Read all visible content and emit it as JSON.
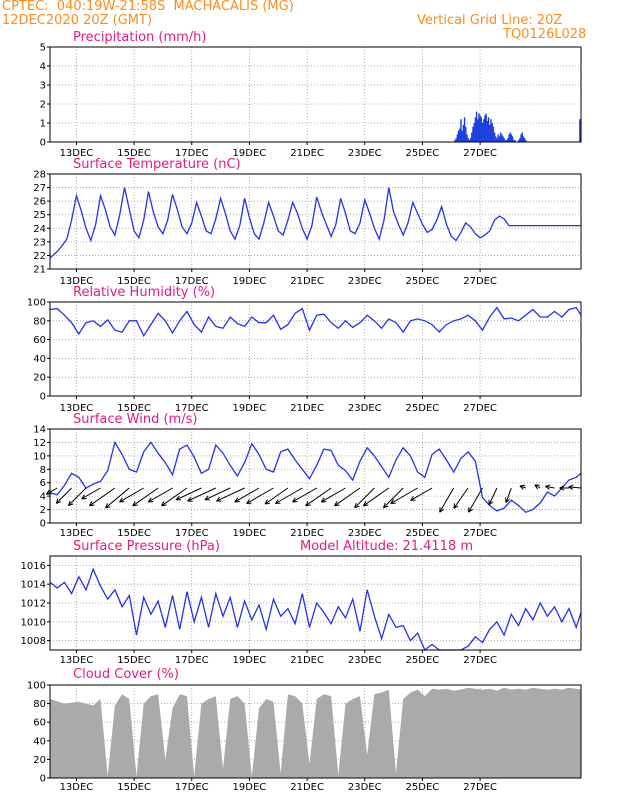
{
  "header": {
    "line1": "CPTEC:  040:19W-21:58S  MACHACALIS (MG)",
    "line2": "12DEC2020 20Z (GMT)",
    "right1": "Vertical Grid Line: 20Z",
    "right2": "TQ0126L028"
  },
  "colors": {
    "line": "#2233ee",
    "bar": "#1a3fe0",
    "cloud": "#aaaaaa",
    "title": "#e6197f",
    "header": "#ff8c1a",
    "arrow": "#000000"
  },
  "x_ticks": [
    "13DEC",
    "15DEC",
    "17DEC",
    "19DEC",
    "21DEC",
    "23DEC",
    "25DEC",
    "27DEC"
  ],
  "chart_data": [
    {
      "type": "bar",
      "title": "Precipitation (mm/h)",
      "ylim": [
        0,
        5
      ],
      "yticks": [
        0,
        1,
        2,
        3,
        4,
        5
      ],
      "x_unit": "hours since 12DEC2020 20Z",
      "x": [
        337,
        338,
        339,
        340,
        341,
        342,
        343,
        344,
        345,
        346,
        347,
        348,
        349,
        350,
        351,
        352,
        353,
        354,
        355,
        356,
        357,
        358,
        359,
        360,
        361,
        362,
        363,
        364,
        365,
        366,
        367,
        368,
        369,
        370,
        371,
        372,
        373,
        374,
        375,
        376,
        377,
        378,
        379,
        380,
        381,
        382,
        383,
        384,
        385,
        386,
        387,
        388,
        389,
        390,
        391,
        392,
        393,
        394,
        395,
        396,
        397,
        398,
        399,
        400,
        401,
        402,
        403,
        404,
        405,
        406,
        407,
        408,
        409,
        410,
        411,
        412,
        413,
        414,
        415,
        416,
        417,
        418,
        419,
        420,
        421,
        422,
        423,
        424,
        425,
        426,
        427,
        428,
        429,
        430,
        431,
        432,
        433,
        434,
        435,
        436,
        437,
        438,
        439,
        440,
        441
      ],
      "values": [
        0.1,
        0.2,
        0.4,
        0.6,
        0.7,
        1.2,
        0.6,
        0.9,
        1.3,
        0.8,
        0.4,
        0.2,
        0.1,
        0.2,
        0.5,
        0.8,
        1.0,
        1.3,
        1.6,
        1.2,
        1.5,
        1.4,
        1.3,
        1.0,
        1.2,
        1.4,
        1.5,
        1.1,
        1.3,
        0.9,
        1.2,
        1.0,
        0.8,
        0.5,
        0.3,
        0.2,
        0.4,
        0.3,
        0.5,
        0.4,
        0.3,
        0.2,
        0.1,
        0.1,
        0.2,
        0.4,
        0.5,
        0.4,
        0.3,
        0.1,
        0.1,
        0.0,
        0.0,
        0.1,
        0.2,
        0.4,
        0.5,
        0.3,
        0.2,
        0.1,
        0.0,
        0.0,
        0.0,
        0.0,
        0.0,
        0.0,
        0.0,
        0.0,
        0.0,
        0.0,
        0.0,
        0.0,
        0.0,
        0.0,
        0.0,
        0.0,
        0.0,
        0.0,
        0.0,
        0.0,
        0.0,
        0.0,
        0.0,
        0.0,
        0.0,
        0.0,
        0.0,
        0.0,
        0.0,
        0.0,
        0.0,
        0.0,
        0.0,
        0.0,
        0.0,
        0.0,
        0.0,
        0.0,
        0.0,
        0.0,
        0.0,
        0.0,
        0.0,
        0.0,
        1.2
      ]
    },
    {
      "type": "line",
      "title": "Surface Temperature (nC)",
      "ylim": [
        21,
        28
      ],
      "yticks": [
        21,
        22,
        23,
        24,
        25,
        26,
        27,
        28
      ],
      "x_unit": "hours since 12DEC2020 20Z",
      "x": [
        0,
        6,
        10,
        14,
        18,
        22,
        26,
        30,
        34,
        38,
        42,
        46,
        50,
        54,
        58,
        62,
        66,
        70,
        74,
        78,
        82,
        86,
        90,
        94,
        98,
        102,
        106,
        110,
        114,
        118,
        122,
        126,
        130,
        134,
        138,
        142,
        146,
        150,
        154,
        158,
        162,
        166,
        170,
        174,
        178,
        182,
        186,
        190,
        194,
        198,
        202,
        206,
        210,
        214,
        218,
        222,
        226,
        230,
        234,
        238,
        242,
        246,
        250,
        254,
        258,
        262,
        266,
        270,
        274,
        278,
        282,
        286,
        290,
        294,
        298,
        302,
        306,
        310,
        314,
        318,
        322,
        326,
        330,
        334,
        338,
        342,
        346,
        350,
        354,
        358,
        362,
        366,
        370,
        374,
        378,
        382,
        386,
        390,
        394,
        398,
        402,
        406,
        410,
        414,
        418,
        422,
        426,
        430,
        434,
        438,
        442
      ],
      "values": [
        21.8,
        22.3,
        22.7,
        23.2,
        24.6,
        26.4,
        25.3,
        24.0,
        23.1,
        24.3,
        26.4,
        25.4,
        24.1,
        23.5,
        25.0,
        27.0,
        25.4,
        23.8,
        23.3,
        24.6,
        26.7,
        25.2,
        24.1,
        23.6,
        24.6,
        26.5,
        25.4,
        24.1,
        23.6,
        24.4,
        25.9,
        24.9,
        23.8,
        23.6,
        24.7,
        26.2,
        25.1,
        23.8,
        23.2,
        24.2,
        26.2,
        24.8,
        23.6,
        23.2,
        24.4,
        25.9,
        24.9,
        23.8,
        23.5,
        24.6,
        25.9,
        25.1,
        24.0,
        23.2,
        24.2,
        26.3,
        25.2,
        24.3,
        23.4,
        24.3,
        26.2,
        25.1,
        23.8,
        23.6,
        24.4,
        26.1,
        25.1,
        24.0,
        23.2,
        24.6,
        27.0,
        25.2,
        24.3,
        23.5,
        24.4,
        25.9,
        25.1,
        24.3,
        23.7,
        23.9,
        24.6,
        25.6,
        24.3,
        23.4,
        23.1,
        23.7,
        24.4,
        24.1,
        23.6,
        23.3,
        23.5,
        23.8,
        24.6,
        24.9,
        24.7,
        24.2,
        24.2,
        24.2,
        24.2,
        24.2,
        24.2,
        24.2,
        24.2,
        24.2,
        24.2,
        24.2,
        24.2,
        24.2,
        24.2,
        24.2,
        24.2
      ]
    },
    {
      "type": "line",
      "title": "Relative Humidity (%)",
      "ylim": [
        0,
        100
      ],
      "yticks": [
        0,
        20,
        40,
        60,
        80,
        100
      ],
      "x_unit": "hours since 12DEC2020 20Z",
      "x": [
        0,
        6,
        12,
        18,
        24,
        30,
        36,
        42,
        48,
        54,
        60,
        66,
        72,
        78,
        84,
        90,
        96,
        102,
        108,
        114,
        120,
        126,
        132,
        138,
        144,
        150,
        156,
        162,
        168,
        174,
        180,
        186,
        192,
        198,
        204,
        210,
        216,
        222,
        228,
        234,
        240,
        246,
        252,
        258,
        264,
        270,
        276,
        282,
        288,
        294,
        300,
        306,
        312,
        318,
        324,
        330,
        336,
        342,
        348,
        354,
        360,
        366,
        372,
        378,
        384,
        390,
        396,
        402,
        408,
        414,
        420,
        426,
        432,
        438,
        442
      ],
      "values": [
        92,
        93,
        86,
        78,
        66,
        78,
        80,
        74,
        81,
        70,
        68,
        80,
        80,
        64,
        76,
        88,
        80,
        67,
        80,
        90,
        76,
        68,
        84,
        74,
        72,
        84,
        77,
        74,
        84,
        78,
        78,
        86,
        71,
        76,
        88,
        93,
        70,
        86,
        87,
        78,
        72,
        80,
        73,
        78,
        86,
        80,
        72,
        82,
        78,
        68,
        80,
        82,
        80,
        76,
        68,
        76,
        80,
        82,
        86,
        80,
        70,
        84,
        94,
        82,
        83,
        80,
        86,
        92,
        84,
        84,
        90,
        84,
        92,
        94,
        86
      ]
    },
    {
      "type": "line",
      "title": "Surface Wind (m/s)",
      "ylim": [
        0,
        14
      ],
      "yticks": [
        0,
        2,
        4,
        6,
        8,
        10,
        12,
        14
      ],
      "x_unit": "hours since 12DEC2020 20Z",
      "x": [
        0,
        6,
        12,
        18,
        24,
        30,
        36,
        42,
        48,
        54,
        60,
        66,
        72,
        78,
        84,
        90,
        96,
        102,
        108,
        114,
        120,
        126,
        132,
        138,
        144,
        150,
        156,
        162,
        168,
        174,
        180,
        186,
        192,
        198,
        204,
        210,
        216,
        222,
        228,
        234,
        240,
        246,
        252,
        258,
        264,
        270,
        276,
        282,
        288,
        294,
        300,
        306,
        312,
        318,
        324,
        330,
        336,
        342,
        348,
        354,
        360,
        366,
        372,
        378,
        384,
        390,
        396,
        402,
        408,
        414,
        420,
        426,
        432,
        438,
        442
      ],
      "values": [
        4.5,
        4.2,
        5.6,
        7.4,
        6.8,
        5.2,
        5.8,
        6.2,
        7.8,
        12.0,
        10.2,
        8.0,
        7.6,
        10.6,
        12.0,
        10.4,
        9.0,
        7.2,
        11.0,
        11.6,
        9.8,
        7.4,
        8.0,
        11.6,
        10.4,
        8.6,
        7.0,
        9.0,
        11.8,
        10.2,
        8.0,
        7.6,
        10.6,
        11.0,
        9.4,
        8.0,
        6.6,
        8.6,
        11.0,
        10.8,
        8.6,
        7.8,
        6.4,
        9.2,
        11.2,
        10.0,
        8.4,
        6.8,
        9.4,
        11.2,
        10.0,
        7.6,
        6.8,
        10.2,
        11.0,
        9.4,
        7.6,
        9.6,
        10.6,
        9.2,
        3.8,
        2.6,
        1.8,
        2.2,
        3.4,
        2.6,
        1.6,
        2.0,
        3.0,
        4.6,
        4.0,
        5.2,
        6.4,
        6.8,
        7.4
      ]
    },
    {
      "type": "line",
      "title": "Surface Pressure (hPa)",
      "subtitle": "Model Altitude: 21.4118 m",
      "ylim": [
        1007,
        1017
      ],
      "yticks": [
        1008,
        1010,
        1012,
        1014,
        1016
      ],
      "x_unit": "hours since 12DEC2020 20Z",
      "x": [
        0,
        6,
        12,
        18,
        24,
        30,
        36,
        42,
        48,
        54,
        60,
        66,
        72,
        78,
        84,
        90,
        96,
        102,
        108,
        114,
        120,
        126,
        132,
        138,
        144,
        150,
        156,
        162,
        168,
        174,
        180,
        186,
        192,
        198,
        204,
        210,
        216,
        222,
        228,
        234,
        240,
        246,
        252,
        258,
        264,
        270,
        276,
        282,
        288,
        294,
        300,
        306,
        312,
        318,
        324,
        330,
        336,
        342,
        348,
        354,
        360,
        366,
        372,
        378,
        384,
        390,
        396,
        402,
        408,
        414,
        420,
        426,
        432,
        438,
        442
      ],
      "values": [
        1014.2,
        1013.6,
        1014.2,
        1013.0,
        1014.8,
        1013.4,
        1015.6,
        1013.8,
        1012.4,
        1013.4,
        1011.6,
        1012.8,
        1008.6,
        1012.6,
        1010.8,
        1012.2,
        1009.4,
        1012.8,
        1009.2,
        1013.2,
        1010.0,
        1012.6,
        1009.4,
        1013.0,
        1010.6,
        1012.6,
        1009.4,
        1012.2,
        1010.2,
        1011.8,
        1009.2,
        1012.4,
        1010.6,
        1011.4,
        1009.8,
        1013.0,
        1009.4,
        1012.0,
        1011.0,
        1009.8,
        1011.6,
        1010.4,
        1012.4,
        1009.0,
        1013.4,
        1010.6,
        1008.2,
        1010.8,
        1009.4,
        1009.6,
        1008.0,
        1008.8,
        1006.8,
        1007.6,
        1006.6,
        1007.0,
        1006.8,
        1006.6,
        1007.4,
        1008.4,
        1007.8,
        1009.2,
        1010.0,
        1008.6,
        1010.8,
        1009.6,
        1011.4,
        1010.2,
        1012.0,
        1010.6,
        1011.6,
        1010.0,
        1011.4,
        1009.4,
        1011.0
      ]
    },
    {
      "type": "area",
      "title": "Cloud Cover (%)",
      "ylim": [
        0,
        100
      ],
      "yticks": [
        0,
        20,
        40,
        60,
        80,
        100
      ],
      "x_unit": "hours since 12DEC2020 20Z",
      "x": [
        0,
        12,
        24,
        36,
        42,
        48,
        54,
        60,
        66,
        72,
        78,
        84,
        90,
        96,
        102,
        108,
        114,
        120,
        126,
        132,
        138,
        144,
        150,
        156,
        162,
        168,
        174,
        180,
        186,
        192,
        198,
        204,
        210,
        216,
        222,
        228,
        234,
        240,
        246,
        252,
        258,
        264,
        270,
        276,
        282,
        288,
        294,
        300,
        306,
        312,
        318,
        324,
        330,
        336,
        342,
        348,
        354,
        360,
        366,
        372,
        378,
        384,
        390,
        396,
        402,
        408,
        414,
        420,
        426,
        432,
        438,
        442
      ],
      "values": [
        85,
        80,
        82,
        78,
        85,
        2,
        78,
        90,
        85,
        2,
        80,
        88,
        90,
        20,
        75,
        90,
        88,
        2,
        80,
        85,
        88,
        10,
        85,
        88,
        80,
        2,
        75,
        85,
        82,
        5,
        90,
        88,
        80,
        15,
        85,
        90,
        88,
        3,
        80,
        85,
        88,
        25,
        90,
        92,
        95,
        5,
        85,
        92,
        95,
        88,
        96,
        95,
        96,
        94,
        95,
        97,
        96,
        95,
        96,
        94,
        97,
        95,
        96,
        95,
        97,
        96,
        95,
        96,
        95,
        97,
        96,
        95
      ]
    }
  ],
  "wind_vectors": {
    "note": "direction_deg is meteorological 'towards' angle on screen (degrees, 0=east, counter-clockwise)",
    "x": [
      6,
      18,
      30,
      42,
      54,
      66,
      78,
      90,
      102,
      114,
      126,
      138,
      150,
      162,
      174,
      186,
      198,
      210,
      222,
      234,
      246,
      258,
      270,
      282,
      294,
      306,
      318,
      336,
      348,
      360,
      372,
      384,
      396,
      408,
      420,
      432,
      442
    ],
    "direction_deg": [
      210,
      225,
      225,
      210,
      215,
      220,
      210,
      215,
      210,
      215,
      205,
      205,
      205,
      205,
      210,
      210,
      215,
      210,
      210,
      215,
      210,
      215,
      225,
      215,
      225,
      210,
      210,
      240,
      235,
      240,
      245,
      250,
      160,
      150,
      170,
      180,
      175
    ],
    "speed": [
      4,
      7,
      8,
      7,
      10,
      10,
      9,
      10,
      9,
      10,
      9,
      10,
      9,
      10,
      9,
      10,
      9,
      10,
      9,
      10,
      9,
      10,
      9,
      10,
      9,
      10,
      8,
      9,
      8,
      9,
      6,
      5,
      2,
      2,
      3,
      3,
      4
    ]
  }
}
